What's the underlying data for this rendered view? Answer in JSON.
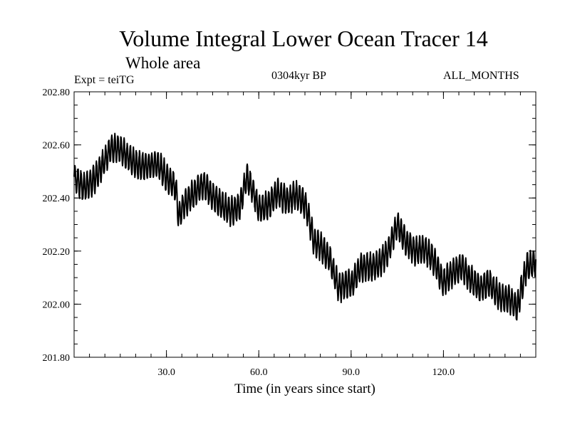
{
  "chart_data": {
    "type": "line",
    "title": "Volume Integral Lower Ocean Tracer 14",
    "subtitle": "Whole area",
    "expt_label": "Expt = teiTG",
    "period_label": "0304kyr BP",
    "months_label": "ALL_MONTHS",
    "xlabel": "Time (in years since start)",
    "ylabel": "",
    "xlim": [
      0,
      150
    ],
    "ylim": [
      201.8,
      202.8
    ],
    "x_ticks": [
      30,
      60,
      90,
      120
    ],
    "x_tick_labels": [
      "30.0",
      "60.0",
      "90.0",
      "120.0"
    ],
    "y_ticks": [
      201.8,
      202.0,
      202.2,
      202.4,
      202.6,
      202.8
    ],
    "y_tick_labels": [
      "201.80",
      "202.00",
      "202.20",
      "202.40",
      "202.60",
      "202.80"
    ],
    "grid": false,
    "line_color": "#000000",
    "oscillation_amplitude": 0.05,
    "samples_per_year": 1,
    "series": [
      {
        "name": "Tracer 14",
        "trend_x": [
          0,
          3,
          6,
          9,
          12,
          15,
          18,
          21,
          24,
          27,
          30,
          33,
          34,
          36,
          39,
          42,
          45,
          48,
          51,
          54,
          56,
          58,
          60,
          63,
          66,
          69,
          72,
          75,
          76,
          78,
          80,
          83,
          86,
          89,
          90,
          93,
          96,
          99,
          102,
          105,
          108,
          111,
          114,
          117,
          120,
          123,
          126,
          129,
          132,
          135,
          138,
          141,
          144,
          147,
          150
        ],
        "trend_y": [
          202.48,
          202.44,
          202.46,
          202.52,
          202.59,
          202.58,
          202.55,
          202.52,
          202.52,
          202.53,
          202.48,
          202.44,
          202.33,
          202.38,
          202.42,
          202.45,
          202.41,
          202.37,
          202.35,
          202.37,
          202.48,
          202.43,
          202.36,
          202.37,
          202.42,
          202.39,
          202.41,
          202.38,
          202.34,
          202.23,
          202.22,
          202.17,
          202.06,
          202.08,
          202.07,
          202.14,
          202.14,
          202.15,
          202.2,
          202.3,
          202.23,
          202.2,
          202.21,
          202.16,
          202.08,
          202.12,
          202.14,
          202.09,
          202.06,
          202.08,
          202.03,
          202.02,
          201.99,
          202.14,
          202.16
        ]
      }
    ]
  }
}
